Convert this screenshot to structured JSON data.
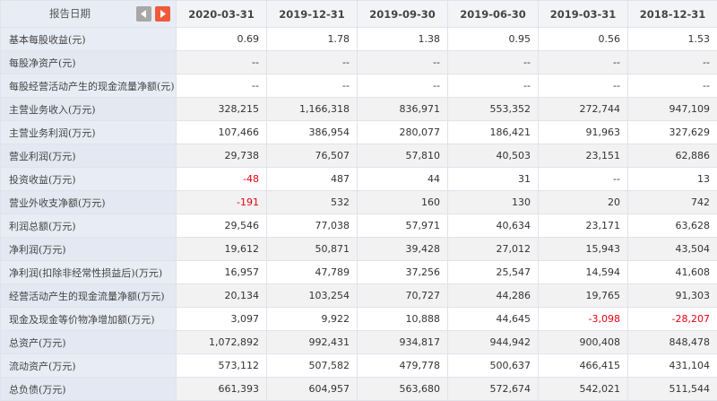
{
  "header": {
    "title": "报告日期",
    "prev_icon": "triangle-left-icon",
    "next_icon": "triangle-right-icon",
    "dates": [
      "2020-03-31",
      "2019-12-31",
      "2019-09-30",
      "2019-06-30",
      "2019-03-31",
      "2018-12-31"
    ]
  },
  "colors": {
    "negative": "#e60012",
    "next_button": "#ef5a3c",
    "prev_button": "#a7a7a7",
    "label_bg": "#e8ecf5"
  },
  "rows": [
    {
      "label": "基本每股收益(元)",
      "values": [
        "0.69",
        "1.78",
        "1.38",
        "0.95",
        "0.56",
        "1.53"
      ]
    },
    {
      "label": "每股净资产(元)",
      "values": [
        "--",
        "--",
        "--",
        "--",
        "--",
        "--"
      ]
    },
    {
      "label": "每股经营活动产生的现金流量净额(元)",
      "values": [
        "--",
        "--",
        "--",
        "--",
        "--",
        "--"
      ]
    },
    {
      "label": "主营业务收入(万元)",
      "values": [
        "328,215",
        "1,166,318",
        "836,971",
        "553,352",
        "272,744",
        "947,109"
      ]
    },
    {
      "label": "主营业务利润(万元)",
      "values": [
        "107,466",
        "386,954",
        "280,077",
        "186,421",
        "91,963",
        "327,629"
      ]
    },
    {
      "label": "营业利润(万元)",
      "values": [
        "29,738",
        "76,507",
        "57,810",
        "40,503",
        "23,151",
        "62,886"
      ]
    },
    {
      "label": "投资收益(万元)",
      "values": [
        "-48",
        "487",
        "44",
        "31",
        "--",
        "13"
      ]
    },
    {
      "label": "营业外收支净额(万元)",
      "values": [
        "-191",
        "532",
        "160",
        "130",
        "20",
        "742"
      ]
    },
    {
      "label": "利润总额(万元)",
      "values": [
        "29,546",
        "77,038",
        "57,971",
        "40,634",
        "23,171",
        "63,628"
      ]
    },
    {
      "label": "净利润(万元)",
      "values": [
        "19,612",
        "50,871",
        "39,428",
        "27,012",
        "15,943",
        "43,504"
      ]
    },
    {
      "label": "净利润(扣除非经常性损益后)(万元)",
      "values": [
        "16,957",
        "47,789",
        "37,256",
        "25,547",
        "14,594",
        "41,608"
      ]
    },
    {
      "label": "经营活动产生的现金流量净额(万元)",
      "values": [
        "20,134",
        "103,254",
        "70,727",
        "44,286",
        "19,765",
        "91,303"
      ]
    },
    {
      "label": "现金及现金等价物净增加额(万元)",
      "values": [
        "3,097",
        "9,922",
        "10,888",
        "44,645",
        "-3,098",
        "-28,207"
      ]
    },
    {
      "label": "总资产(万元)",
      "values": [
        "1,072,892",
        "992,431",
        "934,817",
        "944,942",
        "900,408",
        "848,478"
      ]
    },
    {
      "label": "流动资产(万元)",
      "values": [
        "573,112",
        "507,582",
        "479,778",
        "500,637",
        "466,415",
        "431,104"
      ]
    },
    {
      "label": "总负债(万元)",
      "values": [
        "661,393",
        "604,957",
        "563,680",
        "572,674",
        "542,021",
        "511,544"
      ]
    }
  ]
}
